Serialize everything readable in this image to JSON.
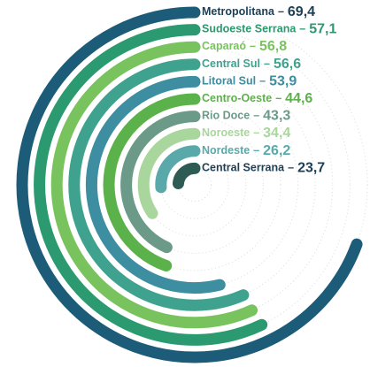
{
  "chart_data": {
    "type": "radial-bar",
    "separator": "–",
    "ylim": [
      0,
      100
    ],
    "categories": [
      "Metropolitana",
      "Sudoeste Serrana",
      "Caparaó",
      "Central Sul",
      "Litoral Sul",
      "Centro-Oeste",
      "Rio Doce",
      "Noroeste",
      "Nordeste",
      "Central Serrana"
    ],
    "values": [
      69.4,
      57.1,
      56.8,
      56.6,
      53.9,
      44.6,
      43.3,
      34.4,
      26.2,
      23.7
    ],
    "value_labels": [
      "69,4",
      "57,1",
      "56,8",
      "56,6",
      "53,9",
      "44,6",
      "43,3",
      "34,4",
      "26,2",
      "23,7"
    ],
    "colors": [
      "#1d5c78",
      "#2b9a70",
      "#78c35e",
      "#3ea28e",
      "#3c8ea0",
      "#5cb24a",
      "#6c9a88",
      "#a9d69c",
      "#5aa9aa",
      "#2e5c54"
    ],
    "label_colors": [
      "#1d3f55",
      "#2b9a70",
      "#78c35e",
      "#3ea28e",
      "#3c8ea0",
      "#5cb24a",
      "#6c9a88",
      "#a9d69c",
      "#5aa9aa",
      "#1d3f55"
    ]
  }
}
